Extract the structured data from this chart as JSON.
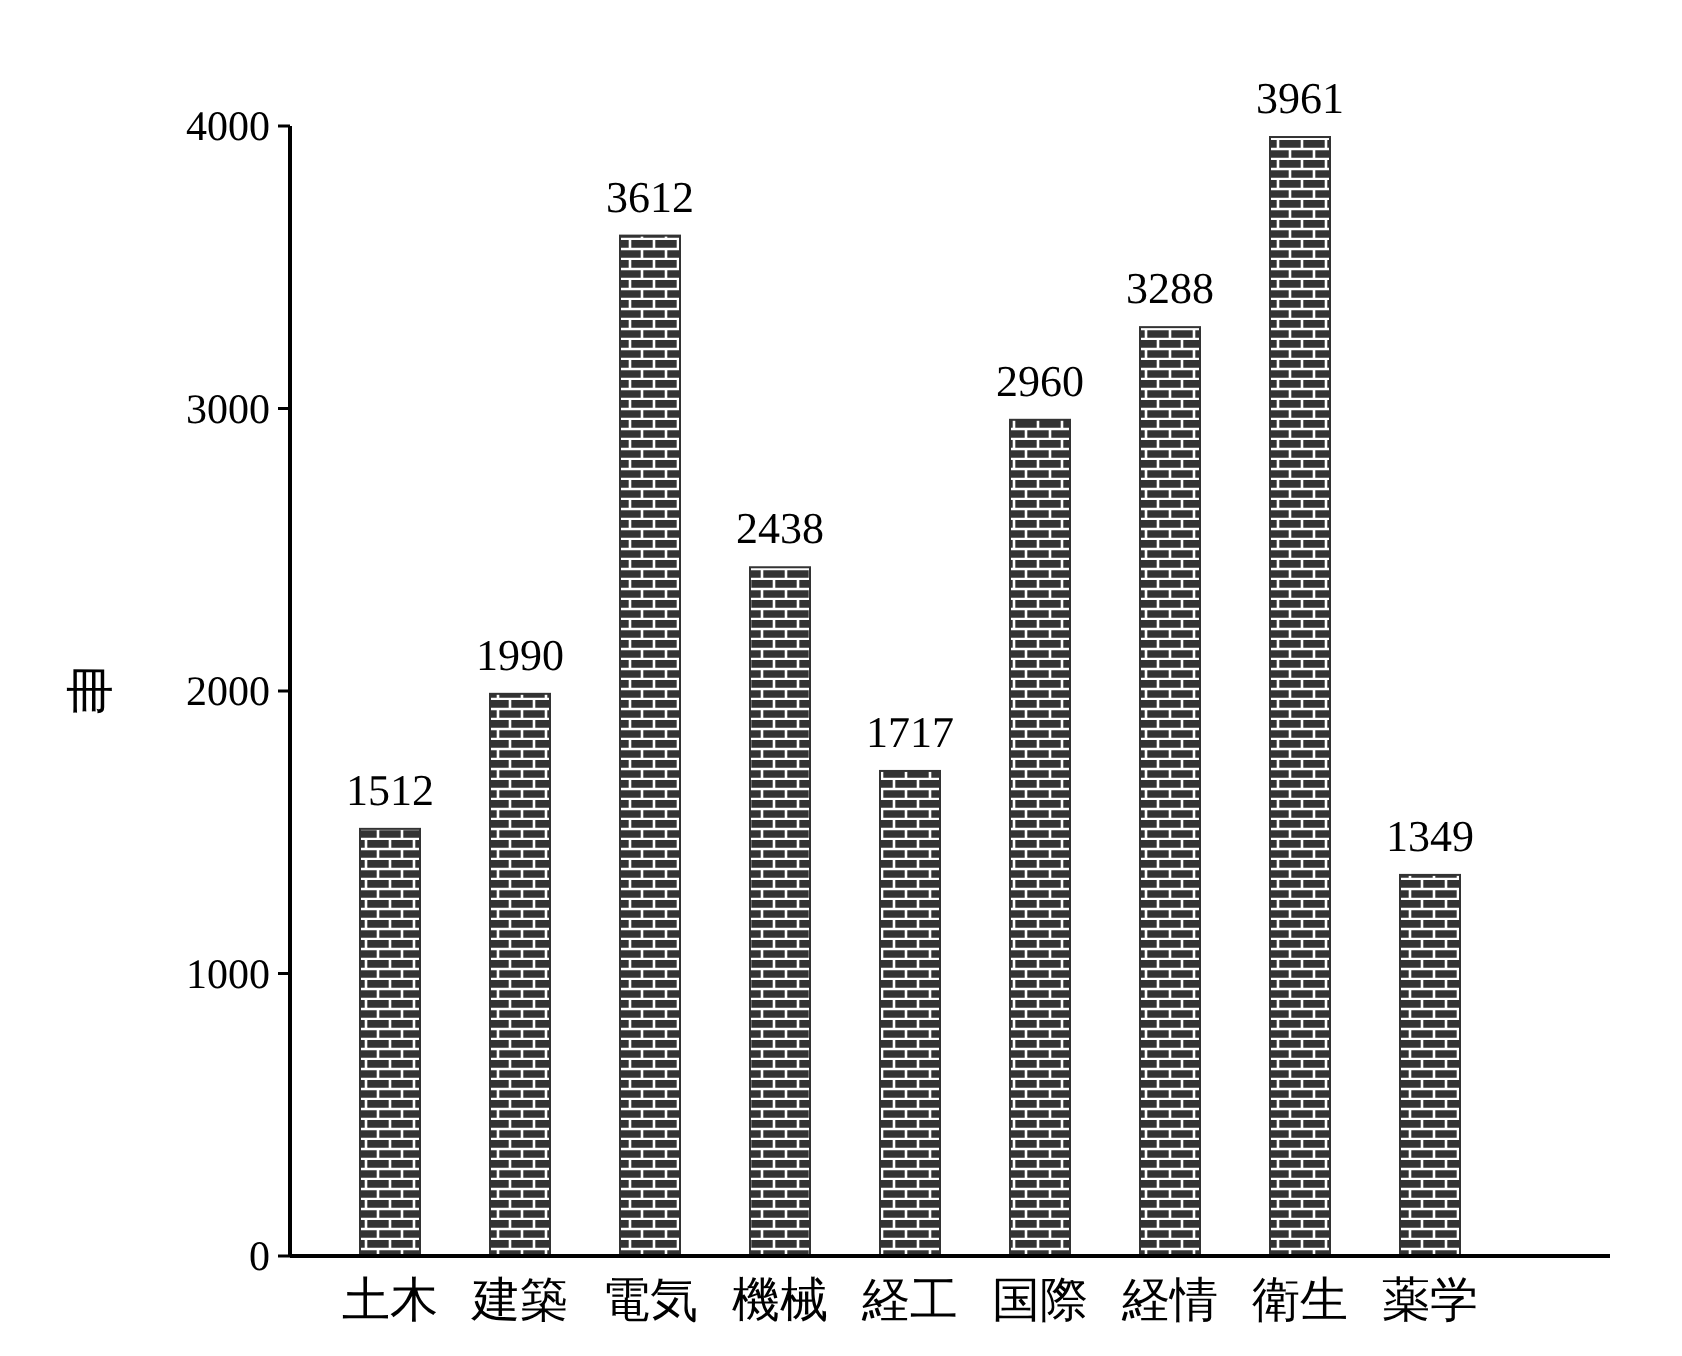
{
  "chart_data": {
    "type": "bar",
    "ylabel": "冊",
    "categories": [
      "土木",
      "建築",
      "電気",
      "機械",
      "経工",
      "国際",
      "経情",
      "衛生",
      "薬学"
    ],
    "values": [
      1512,
      1990,
      3612,
      2438,
      1717,
      2960,
      3288,
      3961,
      1349
    ],
    "color": "#333333",
    "ylim": [
      0,
      4000
    ],
    "yticks": [
      0,
      1000,
      2000,
      3000,
      4000
    ],
    "data_labels": true,
    "grid": false
  }
}
